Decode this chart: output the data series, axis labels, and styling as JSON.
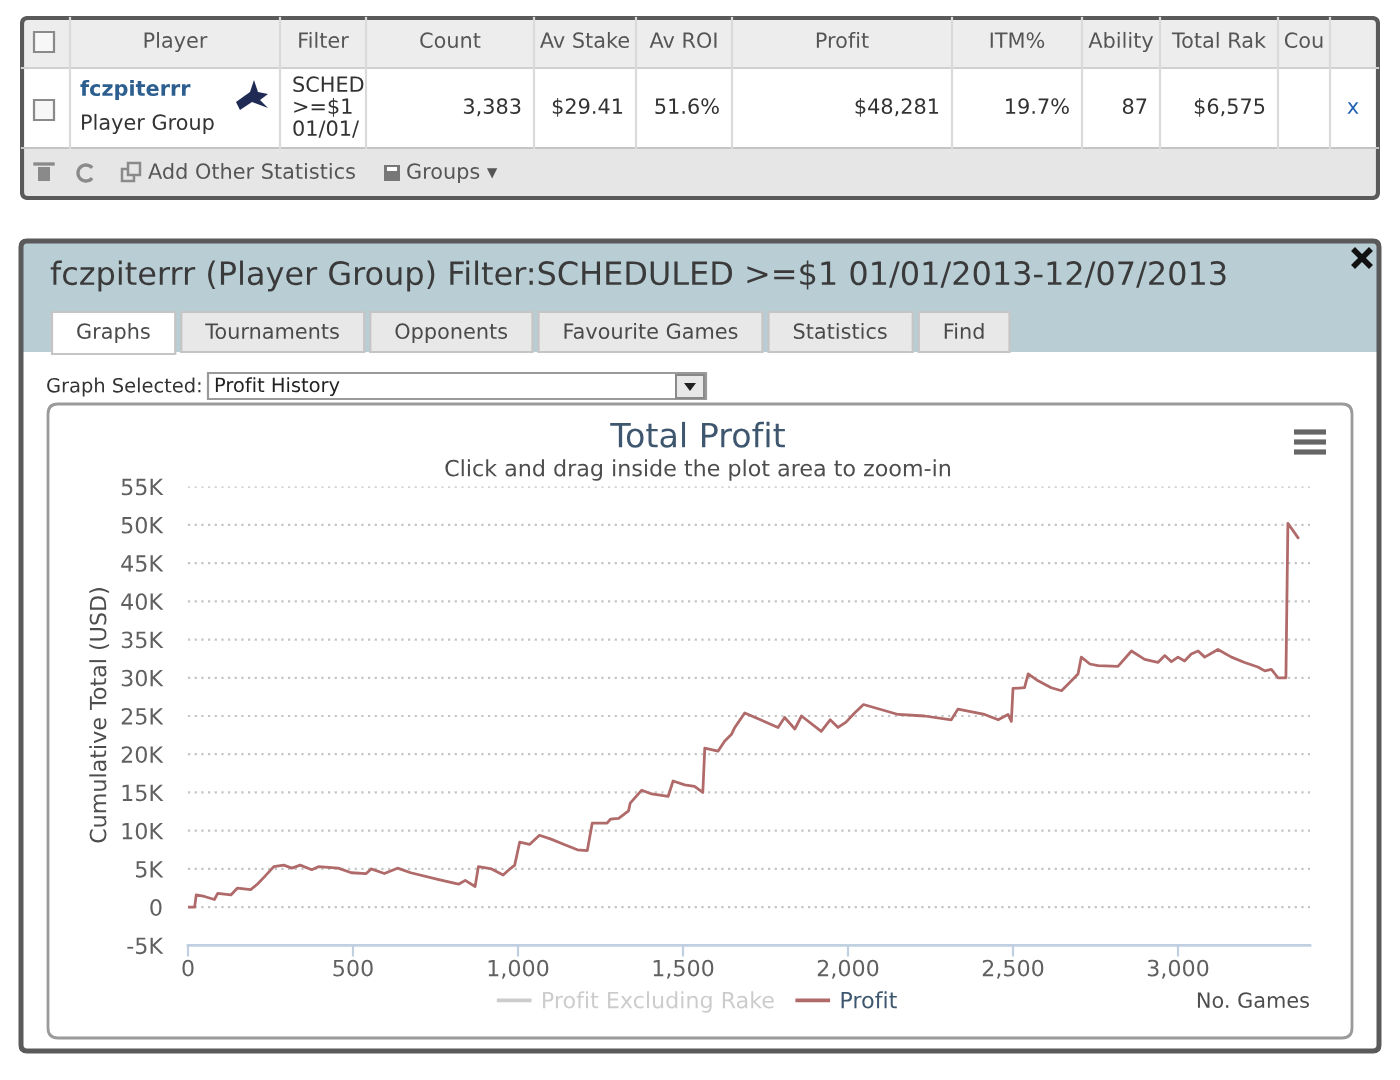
{
  "chart_data": [
    {
      "type": "other",
      "categories": [
        "Player",
        "Filter",
        "Count",
        "Av Stake",
        "Av ROI",
        "Profit",
        "ITM%",
        "Ability",
        "Total Rak",
        "Cou",
        null
      ],
      "cell_labels": [
        [
          "fczpiterrr\nPlayer Group",
          "SCHED\n>=$1\n01/01/",
          "3,383",
          "$29.41",
          "51.6%",
          "$48,281",
          "19.7%",
          "87",
          "$6,575",
          null,
          "x"
        ]
      ],
      "annotations": [
        "Add Other Statistics",
        "Groups ▾"
      ]
    },
    {
      "type": "other",
      "title": "fczpiterrr (Player Group) Filter:SCHEDULED >=$1 01/01/2013-12/07/2013",
      "categories": [
        "Graphs",
        "Tournaments",
        "Opponents",
        "Favourite Games",
        "Statistics",
        "Find"
      ],
      "annotations": [
        "Graph Selected:",
        "Profit History"
      ]
    },
    {
      "type": "line",
      "title": "Total Profit",
      "subtitle": "Click and drag inside the plot area to zoom-in",
      "xlabel": "No. Games",
      "ylabel": "Cumulative Total (USD)",
      "xlim": [
        0,
        3400
      ],
      "xticks": [
        0,
        500,
        {
          "value": 1000,
          "label": "1,000"
        },
        {
          "value": 1500,
          "label": "1,500"
        },
        {
          "value": 2000,
          "label": "2,000"
        },
        {
          "value": 2500,
          "label": "2,500"
        },
        {
          "value": 3000,
          "label": "3,000"
        }
      ],
      "ylim": [
        -5000,
        55000
      ],
      "yticks": [
        {
          "value": -5000,
          "label": "-5K"
        },
        0,
        {
          "value": 5000,
          "label": "5K"
        },
        {
          "value": 10000,
          "label": "10K"
        },
        {
          "value": 15000,
          "label": "15K"
        },
        {
          "value": 20000,
          "label": "20K"
        },
        {
          "value": 25000,
          "label": "25K"
        },
        {
          "value": 30000,
          "label": "30K"
        },
        {
          "value": 35000,
          "label": "35K"
        },
        {
          "value": 40000,
          "label": "40K"
        },
        {
          "value": 45000,
          "label": "45K"
        },
        {
          "value": 50000,
          "label": "50K"
        },
        {
          "value": 55000,
          "label": "55K"
        }
      ],
      "grid": "y",
      "legend": "bottom",
      "series": [
        {
          "name": "Profit Excluding Rake",
          "color": "#cccccc"
        },
        {
          "name": "Profit",
          "color": "#b06a6a",
          "x": [
            0,
            20,
            25,
            50,
            80,
            90,
            130,
            150,
            190,
            210,
            230,
            260,
            290,
            315,
            340,
            375,
            395,
            455,
            495,
            540,
            555,
            595,
            635,
            675,
            760,
            820,
            840,
            870,
            880,
            920,
            955,
            970,
            990,
            1005,
            1035,
            1065,
            1100,
            1140,
            1180,
            1210,
            1225,
            1270,
            1280,
            1305,
            1335,
            1340,
            1375,
            1405,
            1455,
            1470,
            1505,
            1535,
            1560,
            1566,
            1606,
            1626,
            1647,
            1657,
            1687,
            1788,
            1808,
            1839,
            1859,
            1919,
            1946,
            1970,
            1994,
            2020,
            2047,
            2152,
            2232,
            2313,
            2333,
            2414,
            2455,
            2485,
            2495,
            2500,
            2535,
            2546,
            2576,
            2616,
            2647,
            2677,
            2697,
            2707,
            2733,
            2758,
            2818,
            2859,
            2899,
            2939,
            2960,
            2980,
            3000,
            3020,
            3040,
            3061,
            3081,
            3121,
            3162,
            3202,
            3242,
            3263,
            3283,
            3303,
            3327,
            3333,
            3364
          ],
          "values": [
            0,
            0,
            1600,
            1400,
            1000,
            1800,
            1600,
            2500,
            2300,
            3000,
            3900,
            5300,
            5500,
            5100,
            5500,
            4900,
            5300,
            5100,
            4500,
            4400,
            5000,
            4400,
            5100,
            4500,
            3600,
            3000,
            3500,
            2700,
            5300,
            5000,
            4200,
            4800,
            5500,
            8500,
            8200,
            9400,
            8900,
            8200,
            7500,
            7400,
            11000,
            11000,
            11500,
            11600,
            12600,
            13600,
            15300,
            14800,
            14500,
            16500,
            16000,
            15800,
            15000,
            20800,
            20400,
            21700,
            22600,
            23500,
            25400,
            23500,
            24800,
            23300,
            25000,
            23000,
            24500,
            23500,
            24200,
            25400,
            26500,
            25200,
            25000,
            24500,
            25900,
            25200,
            24500,
            25200,
            24300,
            28600,
            28700,
            30500,
            29600,
            28700,
            28300,
            29600,
            30500,
            32700,
            31800,
            31600,
            31500,
            33500,
            32400,
            32000,
            32900,
            32100,
            32700,
            32200,
            33100,
            33500,
            32700,
            33700,
            32700,
            32000,
            31400,
            30900,
            31100,
            30000,
            30000,
            50200,
            48300
          ]
        }
      ]
    }
  ]
}
